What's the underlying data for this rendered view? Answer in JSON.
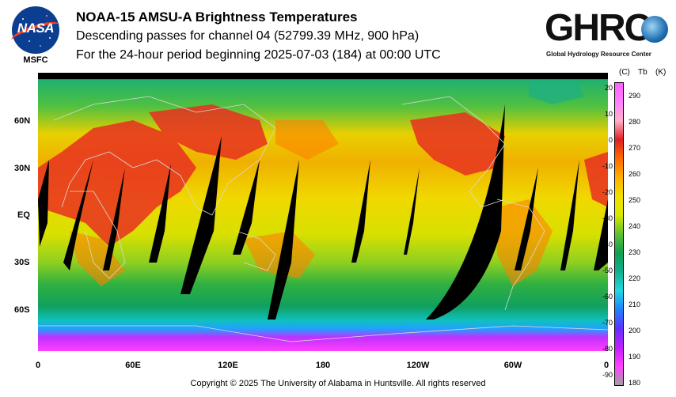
{
  "nasa_logo": {
    "wordmark": "NASA",
    "caption": "MSFC"
  },
  "title": {
    "line1": "NOAA-15 AMSU-A Brightness Temperatures",
    "line2": "Descending passes for channel 04 (52799.39 MHz, 900 hPa)",
    "line3": "For the 24-hour period beginning 2025-07-03 (184) at 00:00 UTC"
  },
  "ghrc_logo": {
    "wordmark": "GHRC",
    "caption": "Global Hydrology Resource Center"
  },
  "map": {
    "lat_labels": [
      "60N",
      "30N",
      "EQ",
      "30S",
      "60S"
    ],
    "lon_labels": [
      "0",
      "60E",
      "120E",
      "180",
      "120W",
      "60W",
      "0"
    ],
    "swath_gap_color": "#000000",
    "coast_color": "#d8d8d8"
  },
  "colorbar": {
    "header_c": "(C)",
    "header_tb": "Tb",
    "header_k": "(K)",
    "celsius_ticks": [
      "20",
      "10",
      "0",
      "-10",
      "-20",
      "-30",
      "-40",
      "-50",
      "-60",
      "-70",
      "-80",
      "-90"
    ],
    "kelvin_ticks": [
      "290",
      "280",
      "270",
      "260",
      "250",
      "240",
      "230",
      "220",
      "210",
      "200",
      "190",
      "180"
    ],
    "gradient": [
      "#ff60ff",
      "#ff80ff",
      "#ffb0c8",
      "#e02020",
      "#ff6a00",
      "#ffb000",
      "#f0e000",
      "#d8e800",
      "#60c030",
      "#10a050",
      "#10b090",
      "#20d8e0",
      "#2080ff",
      "#6030ff",
      "#c020ff",
      "#ff40ff",
      "#a0a0a0"
    ]
  },
  "copyright": "Copyright © 2025 The University of Alabama in Huntsville.  All rights reserved"
}
